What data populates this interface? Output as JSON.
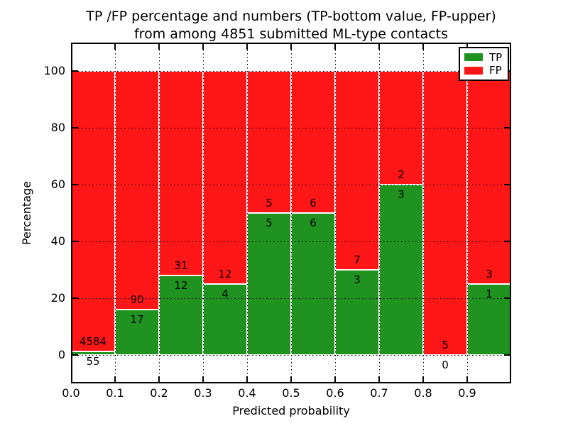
{
  "title": {
    "line1": "TP /FP percentage and numbers (TP-bottom value, FP-upper)",
    "line2": "from among 4851 submitted ML-type contacts"
  },
  "axes": {
    "xlabel": "Predicted probability",
    "ylabel": "Percentage",
    "x_tick_labels": [
      "0.0",
      "0.1",
      "0.2",
      "0.3",
      "0.4",
      "0.5",
      "0.6",
      "0.7",
      "0.8",
      "0.9"
    ],
    "y_tick_labels": [
      "0",
      "20",
      "40",
      "60",
      "80",
      "100"
    ],
    "y_tick_values": [
      0,
      20,
      40,
      60,
      80,
      100
    ],
    "xlim": [
      0.0,
      1.0
    ],
    "ylim": [
      -10,
      110
    ]
  },
  "legend": {
    "items": [
      {
        "label": "TP",
        "color": "#209220"
      },
      {
        "label": "FP",
        "color": "#ff1616"
      }
    ]
  },
  "colors": {
    "tp": "#209220",
    "fp": "#ff1616",
    "grid": "#000000",
    "bar_edge": "#ffffff",
    "background": "#ffffff"
  },
  "chart_data": {
    "type": "bar",
    "stacked": true,
    "normalized_to": 100,
    "title": "TP /FP percentage and numbers (TP-bottom value, FP-upper) from among 4851 submitted ML-type contacts",
    "xlabel": "Predicted probability",
    "ylabel": "Percentage",
    "bin_edges": [
      0.0,
      0.1,
      0.2,
      0.3,
      0.4,
      0.5,
      0.6,
      0.7,
      0.8,
      0.9,
      1.0
    ],
    "categories": [
      "0.0-0.1",
      "0.1-0.2",
      "0.2-0.3",
      "0.3-0.4",
      "0.4-0.5",
      "0.5-0.6",
      "0.6-0.7",
      "0.7-0.8",
      "0.8-0.9",
      "0.9-1.0"
    ],
    "series": [
      {
        "name": "TP",
        "counts": [
          55,
          17,
          12,
          4,
          5,
          6,
          3,
          3,
          0,
          1
        ],
        "percent": [
          1.19,
          15.89,
          27.91,
          25,
          50,
          50,
          30,
          60,
          0,
          25
        ]
      },
      {
        "name": "FP",
        "counts": [
          4584,
          90,
          31,
          12,
          5,
          6,
          7,
          2,
          5,
          3
        ],
        "percent": [
          98.81,
          84.11,
          72.09,
          75,
          50,
          50,
          70,
          40,
          100,
          75
        ]
      }
    ],
    "total_contacts": 4851,
    "ylim": [
      -10,
      110
    ],
    "grid": "dotted",
    "legend_position": "upper right"
  }
}
